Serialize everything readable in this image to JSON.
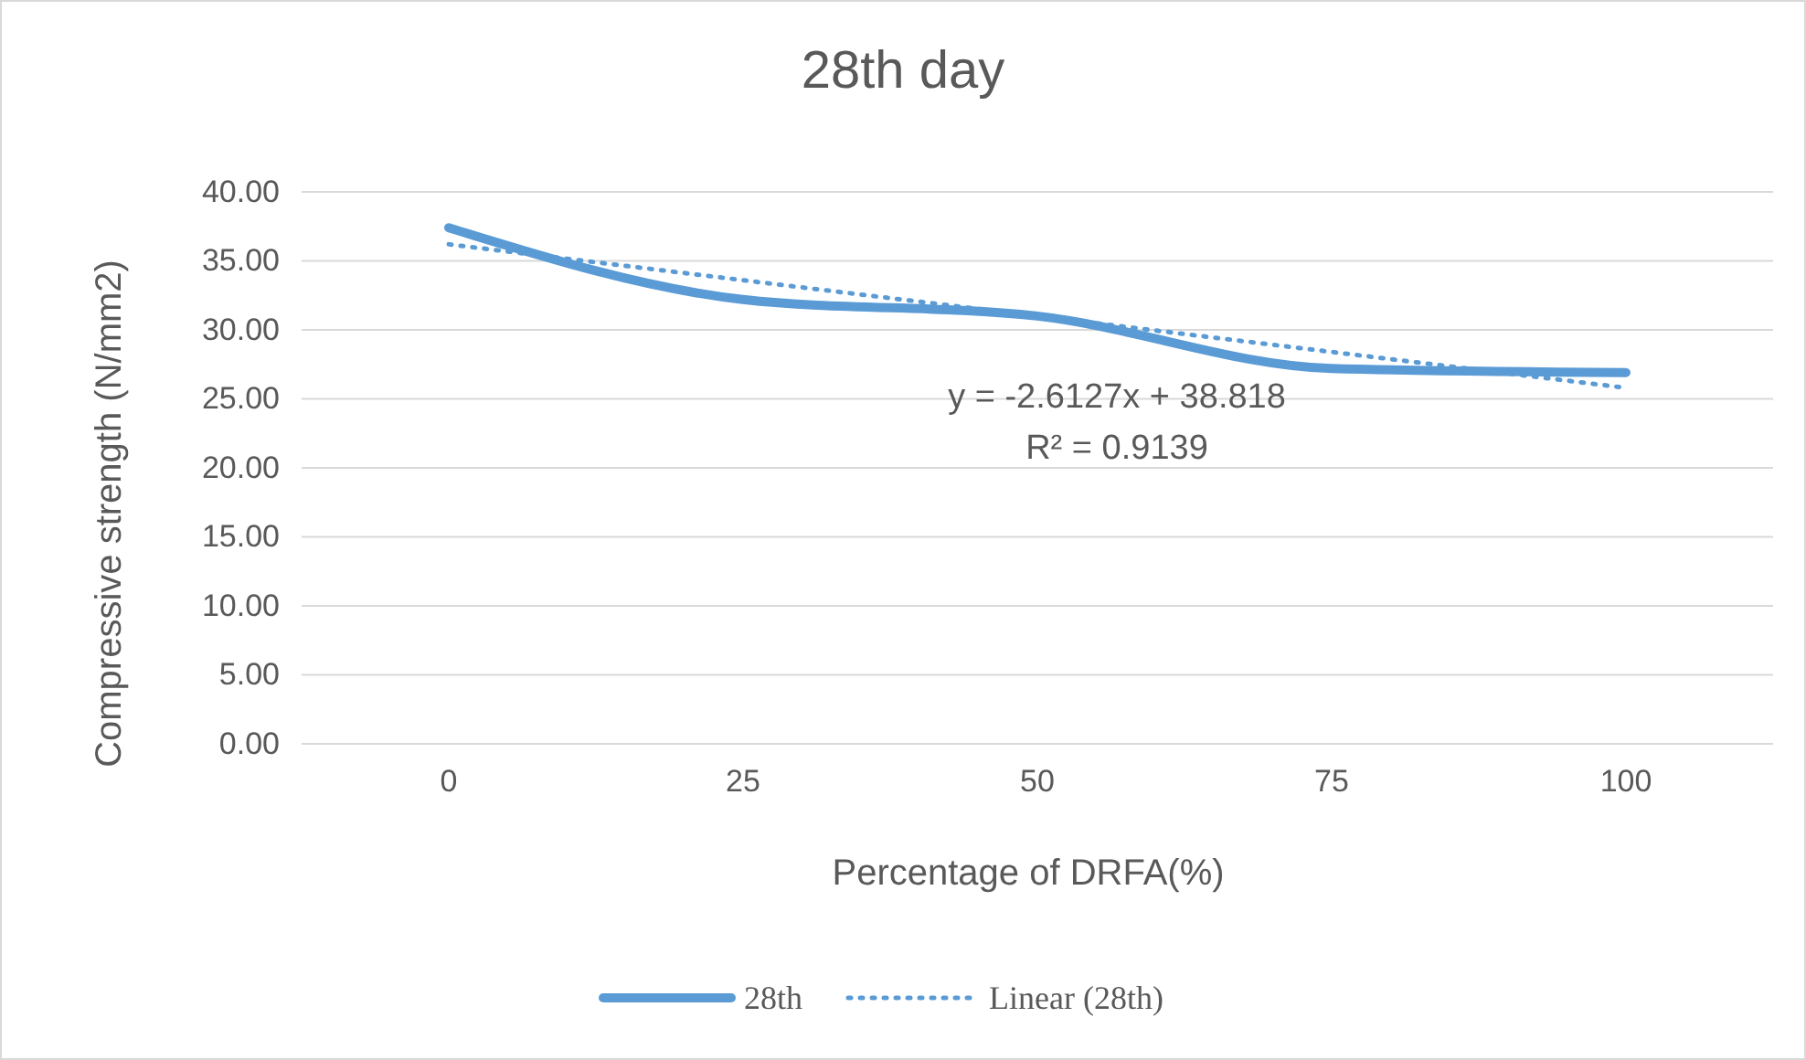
{
  "chart_data": {
    "type": "line",
    "title": "28th day",
    "xlabel": "Percentage of DRFA(%)",
    "ylabel": "Compressive strength (N/mm2)",
    "categories": [
      "0",
      "25",
      "50",
      "75",
      "100"
    ],
    "series": [
      {
        "name": "28th",
        "color": "#5b9bd5",
        "values": [
          37.4,
          32.2,
          31.0,
          27.2,
          26.9
        ],
        "line_style": "solid"
      },
      {
        "name": "Linear (28th)",
        "color": "#5b9bd5",
        "values": [
          36.2,
          33.6,
          31.0,
          28.4,
          25.8
        ],
        "line_style": "dotted"
      }
    ],
    "ylim": [
      0,
      40
    ],
    "yticks": [
      {
        "value": 0,
        "label": "0.00"
      },
      {
        "value": 5,
        "label": "5.00"
      },
      {
        "value": 10,
        "label": "10.00"
      },
      {
        "value": 15,
        "label": "15.00"
      },
      {
        "value": 20,
        "label": "20.00"
      },
      {
        "value": 25,
        "label": "25.00"
      },
      {
        "value": 30,
        "label": "30.00"
      },
      {
        "value": 35,
        "label": "35.00"
      },
      {
        "value": 40,
        "label": "40.00"
      }
    ],
    "grid": "y",
    "legend": "bottom",
    "marker": "none",
    "annotations": [
      "y = -2.6127x + 38.818",
      "R² = 0.9139"
    ]
  }
}
